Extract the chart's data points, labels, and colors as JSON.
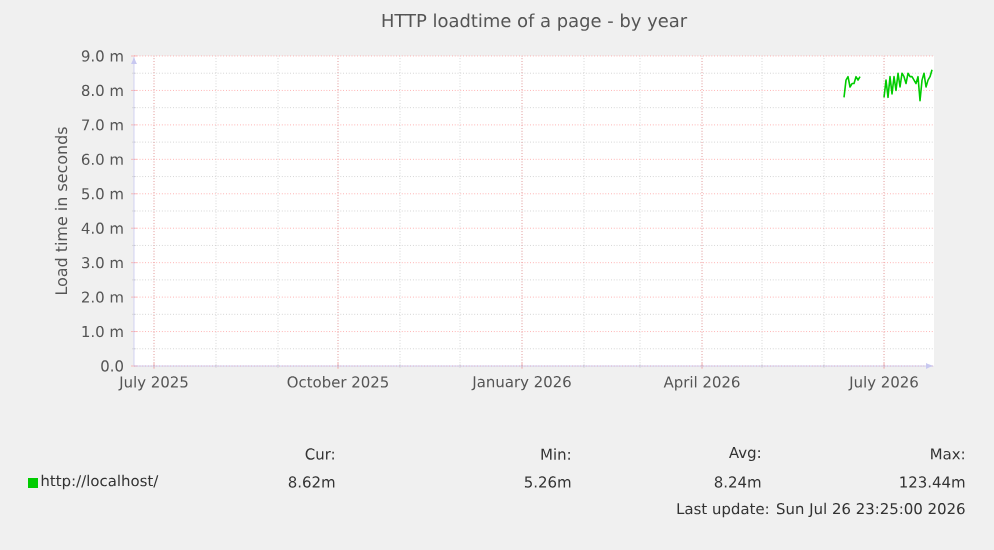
{
  "chart_data": {
    "type": "line",
    "title": "HTTP loadtime of a page - by year",
    "ylabel": "Load time in seconds",
    "x": [
      "2026-06-11",
      "2026-06-12",
      "2026-06-13",
      "2026-06-14",
      "2026-06-15",
      "2026-06-16",
      "2026-06-17",
      "2026-06-18",
      "2026-06-19",
      "2026-06-20",
      "2026-07-01",
      "2026-07-02",
      "2026-07-03",
      "2026-07-04",
      "2026-07-05",
      "2026-07-06",
      "2026-07-07",
      "2026-07-08",
      "2026-07-09",
      "2026-07-10",
      "2026-07-11",
      "2026-07-12",
      "2026-07-13",
      "2026-07-14",
      "2026-07-15",
      "2026-07-16",
      "2026-07-17",
      "2026-07-18",
      "2026-07-19",
      "2026-07-20",
      "2026-07-21",
      "2026-07-22",
      "2026-07-23",
      "2026-07-24",
      "2026-07-25"
    ],
    "series": [
      {
        "name": "http://localhost/",
        "color": "#00cc00",
        "values": [
          7.8,
          8.3,
          8.4,
          8.1,
          8.2,
          8.2,
          8.4,
          8.3,
          8.4,
          null,
          7.8,
          8.3,
          7.8,
          8.4,
          7.9,
          8.4,
          8.0,
          8.5,
          8.1,
          8.5,
          8.4,
          8.2,
          8.5,
          8.4,
          8.4,
          8.3,
          8.2,
          8.4,
          7.7,
          8.3,
          8.5,
          8.1,
          8.3,
          8.4,
          8.6
        ]
      }
    ],
    "xlim": [
      "2025-06-21",
      "2026-07-26"
    ],
    "xticks": [
      {
        "value": "2025-07-01",
        "label": "July 2025"
      },
      {
        "value": "2025-10-01",
        "label": "October 2025"
      },
      {
        "value": "2026-01-01",
        "label": "January 2026"
      },
      {
        "value": "2026-04-01",
        "label": "April 2026"
      },
      {
        "value": "2026-07-01",
        "label": "July 2026"
      }
    ],
    "ylim": [
      0,
      9
    ],
    "yticks": [
      {
        "value": 0,
        "label": "0.0"
      },
      {
        "value": 1,
        "label": "1.0 m"
      },
      {
        "value": 2,
        "label": "2.0 m"
      },
      {
        "value": 3,
        "label": "3.0 m"
      },
      {
        "value": 4,
        "label": "4.0 m"
      },
      {
        "value": 5,
        "label": "5.0 m"
      },
      {
        "value": 6,
        "label": "6.0 m"
      },
      {
        "value": 7,
        "label": "7.0 m"
      },
      {
        "value": 8,
        "label": "8.0 m"
      },
      {
        "value": 9,
        "label": "9.0 m"
      }
    ],
    "grid": true,
    "legend": "bottom",
    "marker": "none",
    "line_style": "solid",
    "annotations": [
      "Cur:",
      "8.62m",
      "Min:",
      "5.26m",
      "Avg:",
      "8.24m",
      "Max:",
      "123.44m",
      "Last update: Sun Jul 26 23:25:00 2026"
    ]
  }
}
